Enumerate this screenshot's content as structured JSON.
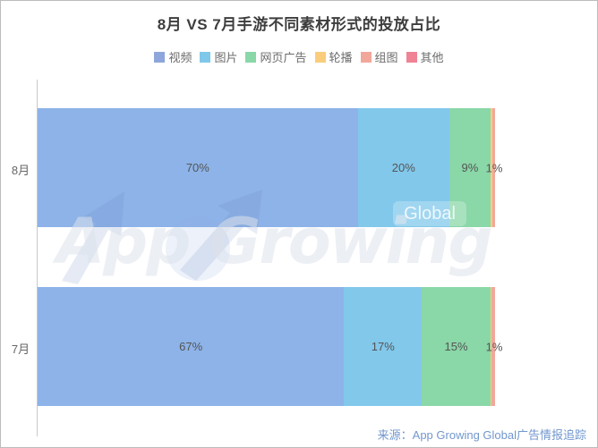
{
  "page": {
    "title": "8月 VS 7月手游不同素材形式的投放占比"
  },
  "legend": {
    "items": [
      {
        "label": "视频",
        "color": "#8ea6db"
      },
      {
        "label": "图片",
        "color": "#80c8ea"
      },
      {
        "label": "网页广告",
        "color": "#8ad7a8"
      },
      {
        "label": "轮播",
        "color": "#facd7c"
      },
      {
        "label": "组图",
        "color": "#f2a79b"
      },
      {
        "label": "其他",
        "color": "#ef8294"
      }
    ]
  },
  "chart_data": {
    "type": "bar",
    "orientation": "horizontal",
    "stacked": true,
    "title": "8月 VS 7月手游不同素材形式的投放占比",
    "categories": [
      "8月",
      "7月"
    ],
    "series": [
      {
        "name": "视频",
        "color": "#8db3e8",
        "values": [
          70,
          67
        ]
      },
      {
        "name": "图片",
        "color": "#82c8eb",
        "values": [
          20,
          17
        ]
      },
      {
        "name": "网页广告",
        "color": "#8ad7a8",
        "values": [
          9,
          15
        ]
      },
      {
        "name": "轮播",
        "color": "#facd7c",
        "values": [
          0.4,
          0.3
        ]
      },
      {
        "name": "组图",
        "color": "#f2a79b",
        "values": [
          0.6,
          0.7
        ]
      },
      {
        "name": "其他",
        "color": "#ef8294",
        "values": [
          0,
          0
        ]
      }
    ],
    "data_labels": {
      "unit": "%",
      "min_value_to_show": 2,
      "tail_labels": [
        "1%",
        "1%"
      ]
    },
    "xlim": [
      0,
      100
    ],
    "grid": false,
    "legend_position": "top"
  },
  "watermark": {
    "text": "App Growing",
    "badge_label": "Global"
  },
  "source": {
    "label": "来源：App Growing Global广告情报追踪"
  }
}
